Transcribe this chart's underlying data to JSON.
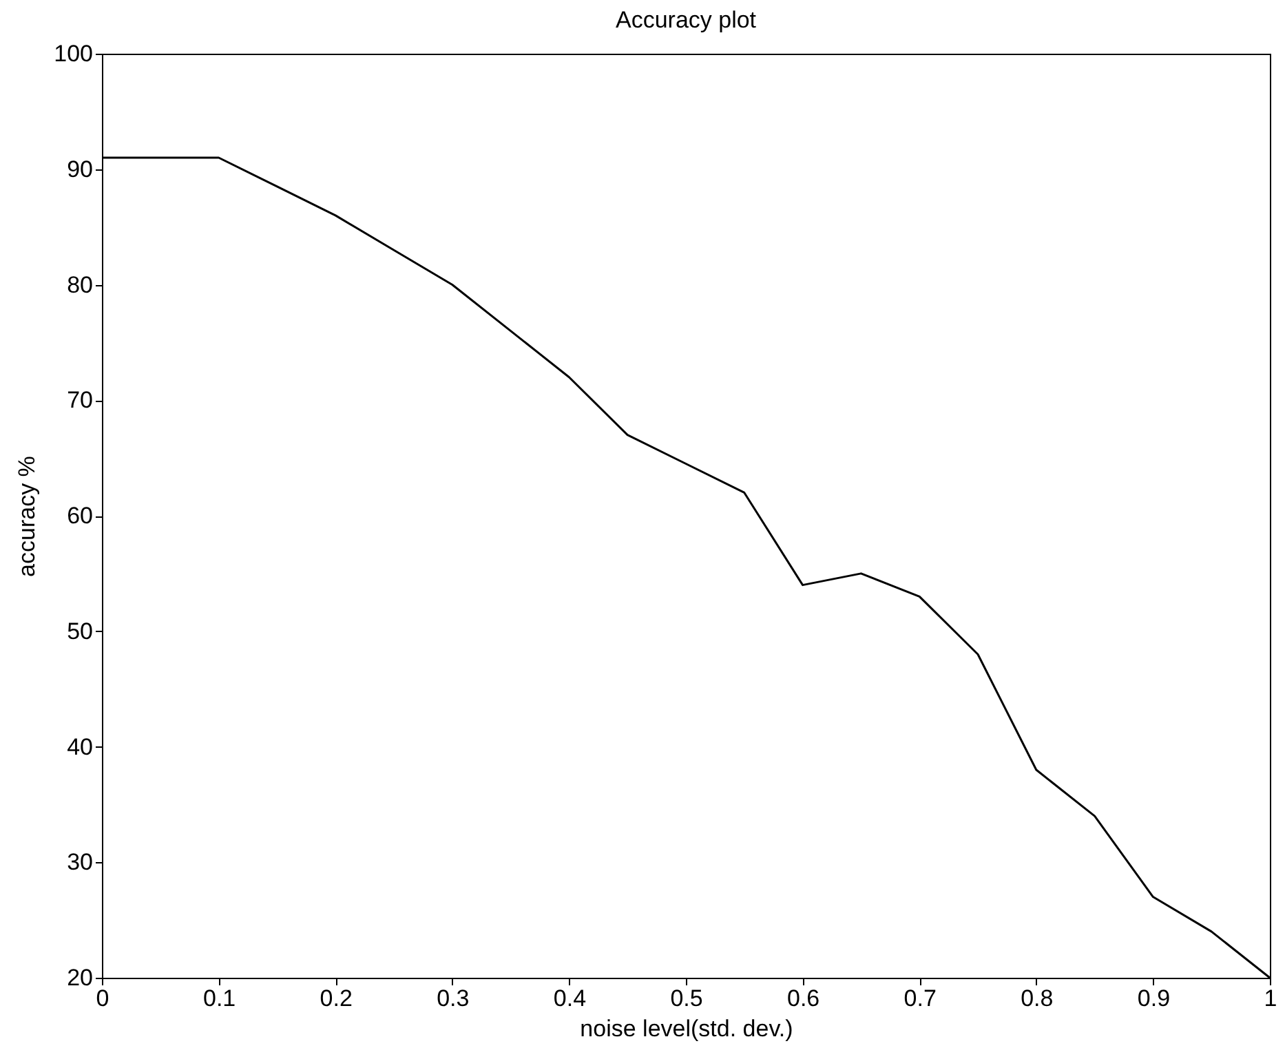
{
  "chart_data": {
    "type": "line",
    "title": "Accuracy plot",
    "xlabel": "noise level(std. dev.)",
    "ylabel": "accuracy %",
    "x": [
      0,
      0.05,
      0.1,
      0.15,
      0.2,
      0.25,
      0.3,
      0.35,
      0.4,
      0.45,
      0.5,
      0.55,
      0.6,
      0.65,
      0.7,
      0.75,
      0.8,
      0.85,
      0.9,
      0.95,
      1.0
    ],
    "series": [
      {
        "color": "#000000",
        "values": [
          91,
          91,
          91,
          88.5,
          86,
          83,
          80,
          76,
          72,
          67,
          64.5,
          62,
          54,
          55,
          53,
          48,
          38,
          34,
          27,
          24,
          20
        ]
      }
    ],
    "xlim": [
      0,
      1
    ],
    "xticks": [
      0,
      0.1,
      0.2,
      0.3,
      0.4,
      0.5,
      0.6,
      0.7,
      0.8,
      0.9,
      1
    ],
    "ylim": [
      20,
      100
    ],
    "yticks": [
      20,
      30,
      40,
      50,
      60,
      70,
      80,
      90,
      100
    ],
    "grid": false,
    "legend": false,
    "marker": "none",
    "line_style": "solid"
  }
}
